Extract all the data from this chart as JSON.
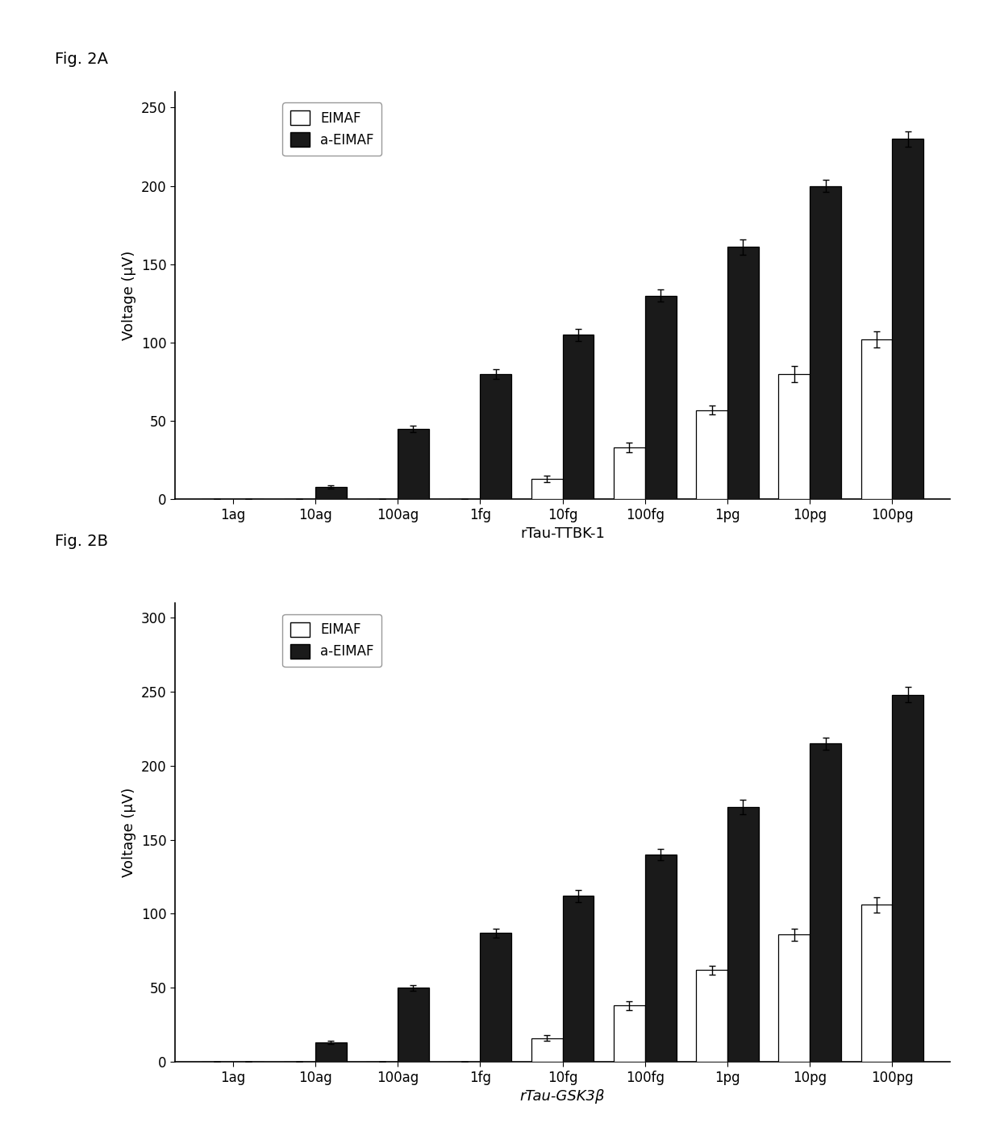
{
  "fig_label_A": "Fig. 2A",
  "fig_label_B": "Fig. 2B",
  "categories": [
    "1ag",
    "10ag",
    "100ag",
    "1fg",
    "10fg",
    "100fg",
    "1pg",
    "10pg",
    "100pg"
  ],
  "chartA": {
    "eimaf_values": [
      0,
      0,
      0,
      0,
      13,
      33,
      57,
      80,
      102
    ],
    "eimaf_errors": [
      0,
      0,
      0,
      0,
      2,
      3,
      3,
      5,
      5
    ],
    "aeimaf_values": [
      0,
      8,
      45,
      80,
      105,
      130,
      161,
      200,
      230
    ],
    "aeimaf_errors": [
      0,
      1,
      2,
      3,
      4,
      4,
      5,
      4,
      5
    ],
    "ylabel": "Voltage (μV)",
    "xlabel": "rTau-TTBK-1",
    "ylim": [
      0,
      260
    ],
    "yticks": [
      0,
      50,
      100,
      150,
      200,
      250
    ]
  },
  "chartB": {
    "eimaf_values": [
      0,
      0,
      0,
      0,
      16,
      38,
      62,
      86,
      106
    ],
    "eimaf_errors": [
      0,
      0,
      0,
      0,
      2,
      3,
      3,
      4,
      5
    ],
    "aeimaf_values": [
      0,
      13,
      50,
      87,
      112,
      140,
      172,
      215,
      248
    ],
    "aeimaf_errors": [
      0,
      1,
      2,
      3,
      4,
      4,
      5,
      4,
      5
    ],
    "ylabel": "Voltage (μV)",
    "xlabel": "rTau-GSK3β",
    "ylim": [
      0,
      310
    ],
    "yticks": [
      0,
      50,
      100,
      150,
      200,
      250,
      300
    ]
  },
  "legend_labels": [
    "EIMAF",
    "a-EIMAF"
  ],
  "bar_width": 0.38,
  "eimaf_color": "#ffffff",
  "aeimaf_color": "#1a1a1a",
  "edge_color": "#000000",
  "background_color": "#ffffff",
  "fig_bg_color": "#ffffff",
  "legend_box_color": "#dddddd"
}
